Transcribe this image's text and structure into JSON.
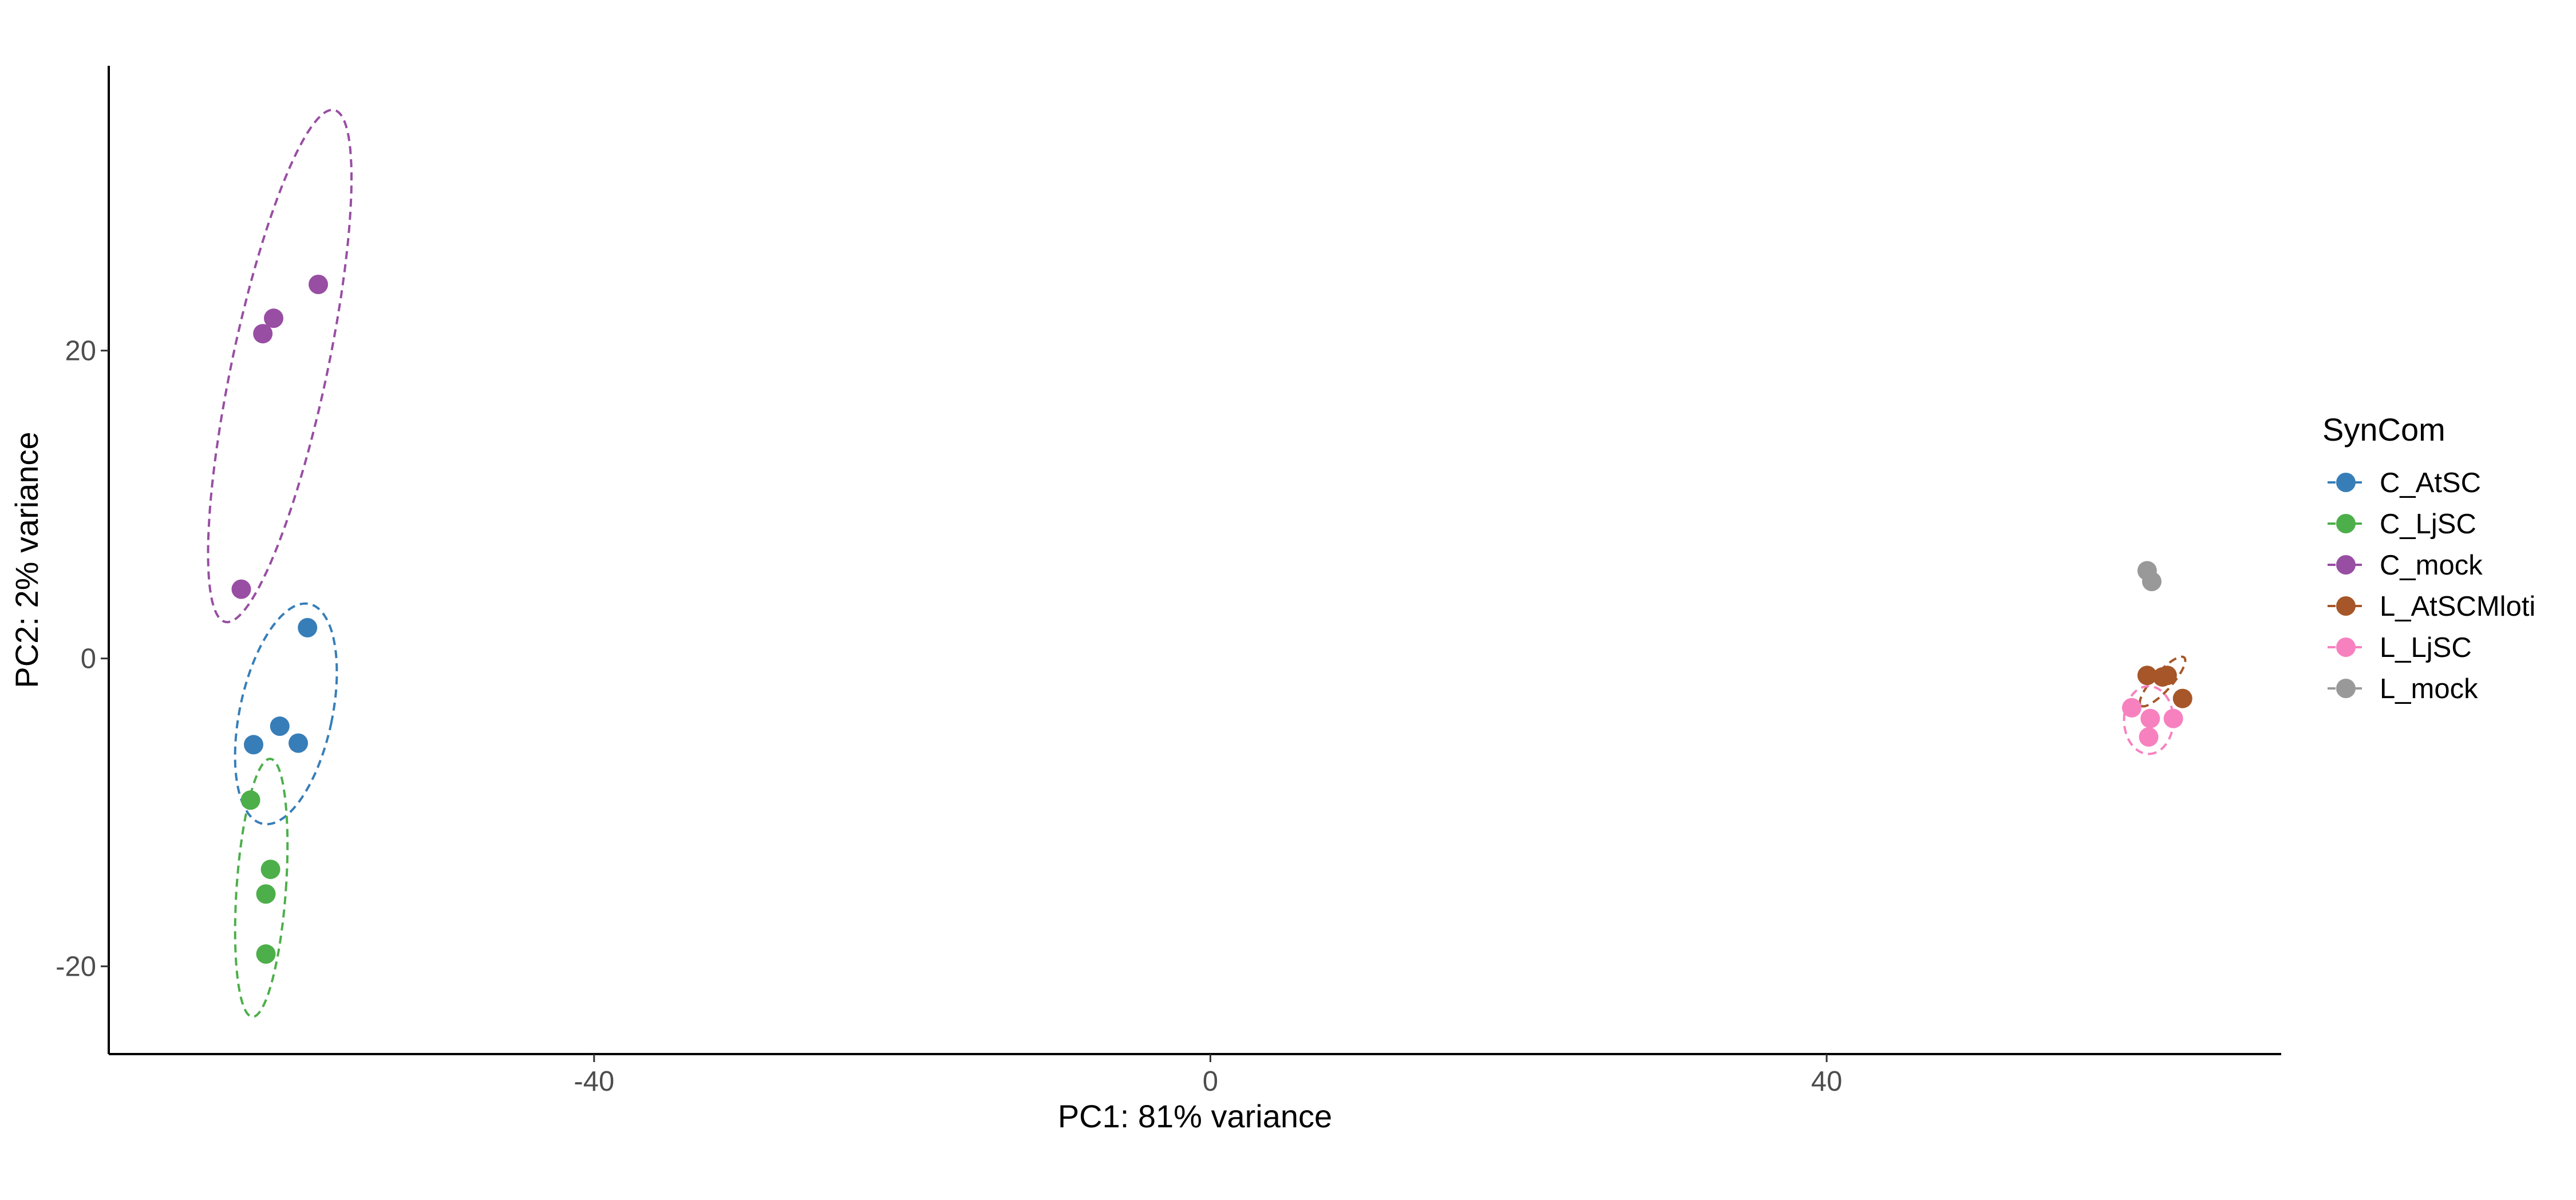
{
  "chart_data": {
    "type": "scatter",
    "xlabel": "PC1: 81% variance",
    "ylabel": "PC2: 2% variance",
    "xlim": [
      -71.5,
      69.5
    ],
    "ylim": [
      -25.7,
      38.5
    ],
    "xticks": [
      -40,
      0,
      40
    ],
    "yticks": [
      -20,
      0,
      20
    ],
    "grid": false,
    "legend": {
      "title": "SynCom",
      "position": "right"
    },
    "ellipses": true,
    "series": [
      {
        "name": "C_AtSC",
        "color": "#377eb8",
        "points": [
          [
            -58.6,
            2.0
          ],
          [
            -62.1,
            -5.6
          ],
          [
            -60.4,
            -4.4
          ],
          [
            -59.2,
            -5.5
          ]
        ],
        "ellipse": {
          "cx": -60.0,
          "cy": -3.6,
          "rx": 3.0,
          "ry": 7.3,
          "angle": 78
        }
      },
      {
        "name": "C_LjSC",
        "color": "#4daf4a",
        "points": [
          [
            -62.3,
            -9.2
          ],
          [
            -61.0,
            -13.7
          ],
          [
            -61.3,
            -15.3
          ],
          [
            -61.3,
            -19.2
          ]
        ],
        "ellipse": {
          "cx": -61.6,
          "cy": -14.9,
          "rx": 1.6,
          "ry": 8.4,
          "angle": 86
        }
      },
      {
        "name": "C_mock",
        "color": "#984ea3",
        "points": [
          [
            -60.8,
            22.1
          ],
          [
            -61.5,
            21.1
          ],
          [
            -57.9,
            24.3
          ],
          [
            -62.9,
            4.5
          ]
        ],
        "ellipse": {
          "cx": -60.4,
          "cy": 19.0,
          "rx": 3.1,
          "ry": 17.0,
          "angle": 78
        }
      },
      {
        "name": "L_AtSCMloti",
        "color": "#a65628",
        "points": [
          [
            60.8,
            -1.1
          ],
          [
            61.8,
            -1.2
          ],
          [
            62.1,
            -1.1
          ],
          [
            63.1,
            -2.6
          ]
        ],
        "ellipse": {
          "cx": 61.8,
          "cy": -1.5,
          "rx": 2.1,
          "ry": 0.6,
          "angle": -42
        }
      },
      {
        "name": "L_LjSC",
        "color": "#f781bf",
        "points": [
          [
            59.8,
            -3.2
          ],
          [
            60.9,
            -5.1
          ],
          [
            61.0,
            -3.9
          ],
          [
            62.5,
            -3.9
          ]
        ],
        "ellipse": {
          "cx": 60.9,
          "cy": -4.0,
          "rx": 2.2,
          "ry": 1.6,
          "angle": 0
        }
      },
      {
        "name": "L_mock",
        "color": "#999999",
        "points": [
          [
            60.8,
            5.7
          ],
          [
            61.1,
            5.0
          ]
        ],
        "ellipse": null
      }
    ]
  }
}
